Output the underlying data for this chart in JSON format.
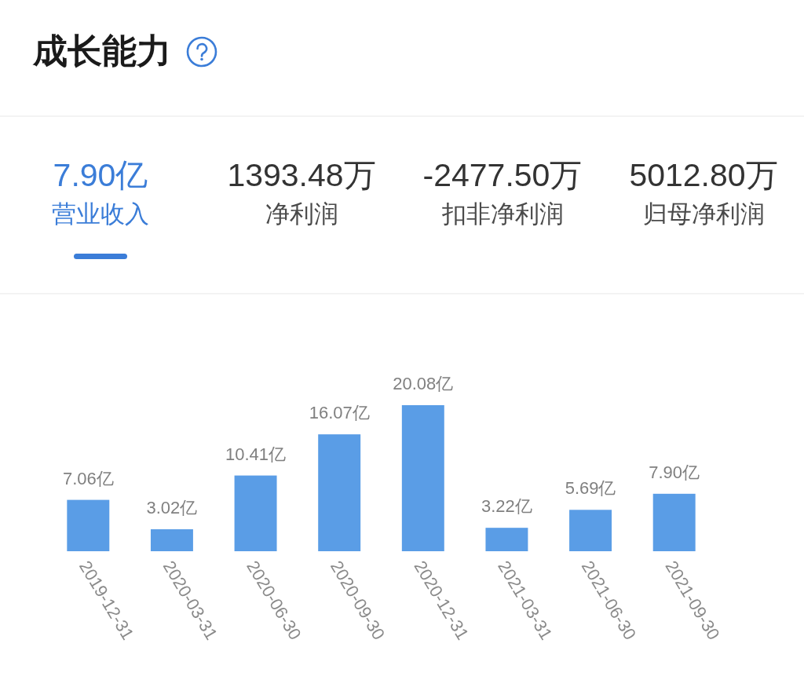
{
  "chart_data": [
    {
      "type": "other",
      "title": "成长能力",
      "annotations": [
        "7.90亿",
        "营业收入",
        "1393.48万",
        "净利润",
        "-2477.50万",
        "扣非净利润",
        "5012.80万",
        "归母净利润"
      ]
    },
    {
      "type": "bar",
      "categories": [
        "2019-12-31",
        "2020-03-31",
        "2020-06-30",
        "2020-09-30",
        "2020-12-31",
        "2021-03-31",
        "2021-06-30",
        "2021-09-30"
      ],
      "values": [
        7.06,
        3.02,
        10.41,
        16.07,
        20.08,
        3.22,
        5.69,
        7.9
      ],
      "value_labels": [
        "7.06亿",
        "3.02亿",
        "10.41亿",
        "16.07亿",
        "20.08亿",
        "3.22亿",
        "5.69亿",
        "7.90亿"
      ],
      "color": "#5a9de6"
    }
  ]
}
